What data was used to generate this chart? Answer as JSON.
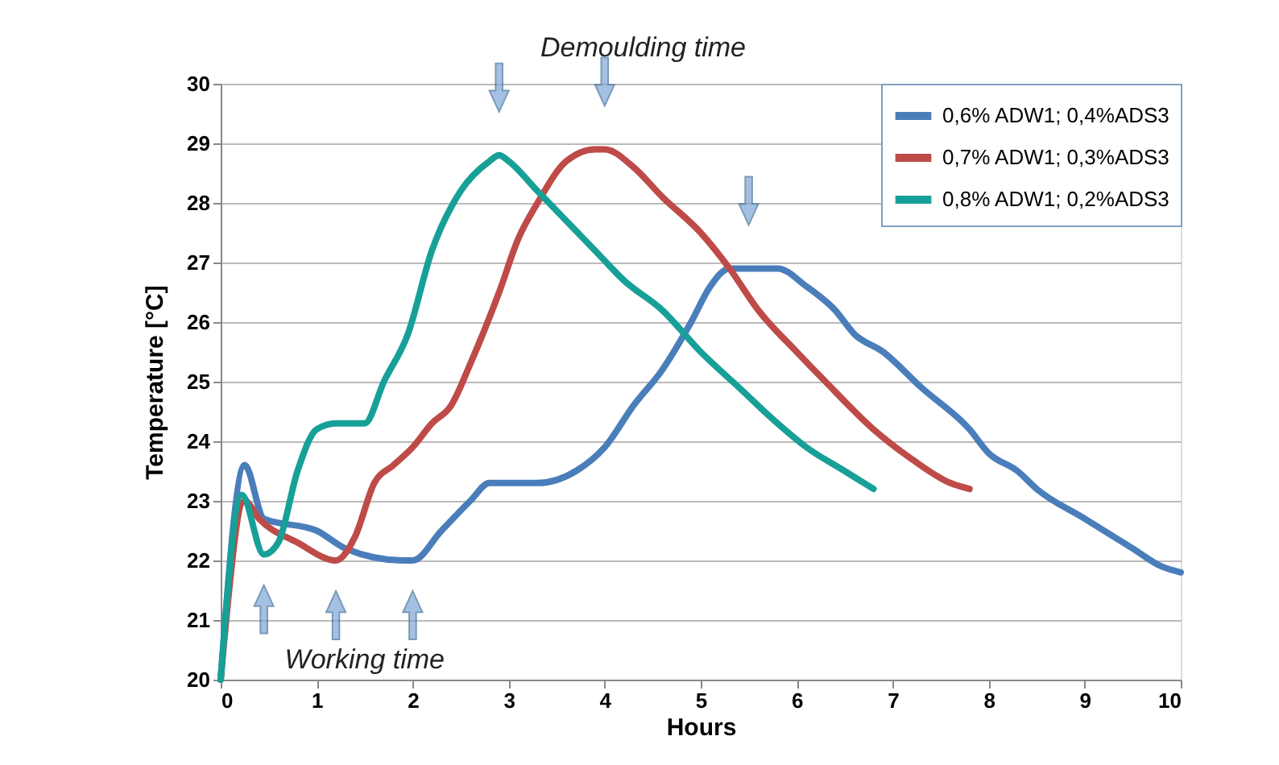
{
  "chart_data": {
    "type": "line",
    "xlabel": "Hours",
    "ylabel": "Temperature  [°C]",
    "xlim": [
      0,
      10
    ],
    "ylim": [
      20,
      30
    ],
    "xticks": [
      0,
      1,
      2,
      3,
      4,
      5,
      6,
      7,
      8,
      9,
      10
    ],
    "yticks": [
      20,
      21,
      22,
      23,
      24,
      25,
      26,
      27,
      28,
      29,
      30
    ],
    "grid": "y",
    "legend": "top right",
    "marker": "none",
    "line_style": "solid",
    "annotations": [
      "Demoulding time",
      "Working time"
    ],
    "series": [
      {
        "name": "0,6% ADW1; 0,4%ADS3",
        "color": "#4a7ebb",
        "x": [
          0,
          0.25,
          0.45,
          1,
          1.3,
          1.9,
          2.0,
          2.3,
          2.6,
          2.8,
          3.0,
          3.3,
          3.7,
          4.0,
          4.3,
          4.6,
          4.9,
          5.1,
          5.3,
          5.5,
          5.8,
          6.1,
          6.4,
          6.6,
          6.9,
          7.3,
          7.8,
          8.0,
          8.3,
          8.5,
          9.0,
          9.5,
          9.8,
          10
        ],
        "values": [
          20,
          23.6,
          22.7,
          22.5,
          22.2,
          22.0,
          22.0,
          22.5,
          23.0,
          23.3,
          23.3,
          23.3,
          23.5,
          23.9,
          24.6,
          25.2,
          26.0,
          26.6,
          26.9,
          26.9,
          26.9,
          26.6,
          26.2,
          25.8,
          25.5,
          24.9,
          24.2,
          23.8,
          23.5,
          23.2,
          22.7,
          22.2,
          21.9,
          21.8
        ]
      },
      {
        "name": "0,7% ADW1; 0,3%ADS3",
        "color": "#be4b48",
        "x": [
          0,
          0.25,
          0.4,
          0.8,
          1.2,
          1.4,
          1.6,
          1.8,
          2.0,
          2.2,
          2.4,
          2.6,
          2.9,
          3.1,
          3.3,
          3.6,
          3.9,
          4.0,
          4.3,
          4.6,
          5.0,
          5.3,
          5.6,
          6.0,
          6.3,
          6.8,
          7.2,
          7.6,
          7.8
        ],
        "values": [
          20,
          23.0,
          22.7,
          22.3,
          22.0,
          22.4,
          23.3,
          23.6,
          23.9,
          24.3,
          24.6,
          25.3,
          26.5,
          27.4,
          28.0,
          28.7,
          28.9,
          28.9,
          28.6,
          28.1,
          27.5,
          26.9,
          26.2,
          25.5,
          25.0,
          24.2,
          23.7,
          23.3,
          23.2
        ]
      },
      {
        "name": "0,8% ADW1; 0,2%ADS3",
        "color": "#17a097",
        "x": [
          0,
          0.22,
          0.45,
          0.6,
          0.8,
          1.0,
          1.2,
          1.5,
          1.7,
          1.95,
          2.2,
          2.5,
          2.8,
          2.9,
          3.0,
          3.3,
          3.6,
          3.9,
          4.2,
          4.6,
          5.0,
          5.4,
          5.8,
          6.1,
          6.5,
          6.8
        ],
        "values": [
          20,
          23.1,
          22.1,
          22.3,
          23.5,
          24.2,
          24.3,
          24.3,
          25.0,
          25.8,
          27.2,
          28.2,
          28.7,
          28.8,
          28.7,
          28.2,
          27.7,
          27.2,
          26.7,
          26.2,
          25.5,
          24.9,
          24.3,
          23.9,
          23.5,
          23.2
        ]
      }
    ]
  }
}
